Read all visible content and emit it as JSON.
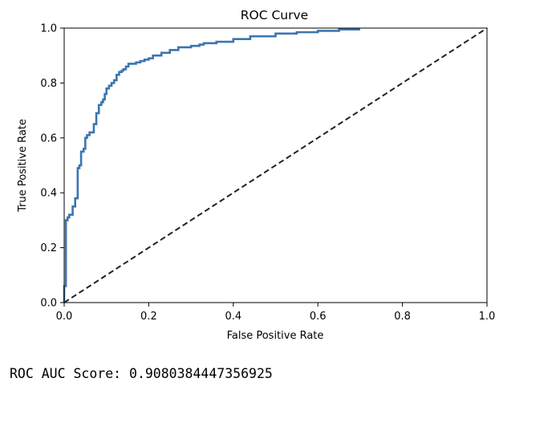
{
  "chart_data": {
    "type": "line",
    "title": "ROC Curve",
    "xlabel": "False Positive Rate",
    "ylabel": "True Positive Rate",
    "xlim": [
      0.0,
      1.0
    ],
    "ylim": [
      0.0,
      1.0
    ],
    "xticks": [
      "0.0",
      "0.2",
      "0.4",
      "0.6",
      "0.8",
      "1.0"
    ],
    "yticks": [
      "0.0",
      "0.2",
      "0.4",
      "0.6",
      "0.8",
      "1.0"
    ],
    "grid": false,
    "legend": "none",
    "series": [
      {
        "color": "#3b75af",
        "style": "solid",
        "step": true,
        "x": [
          0.0,
          0.0,
          0.004,
          0.004,
          0.008,
          0.008,
          0.012,
          0.012,
          0.02,
          0.02,
          0.026,
          0.026,
          0.032,
          0.032,
          0.036,
          0.036,
          0.04,
          0.04,
          0.046,
          0.046,
          0.05,
          0.05,
          0.054,
          0.054,
          0.06,
          0.06,
          0.064,
          0.064,
          0.07,
          0.07,
          0.076,
          0.076,
          0.082,
          0.082,
          0.088,
          0.088,
          0.092,
          0.092,
          0.096,
          0.096,
          0.1,
          0.1,
          0.106,
          0.106,
          0.112,
          0.112,
          0.118,
          0.118,
          0.124,
          0.124,
          0.13,
          0.13,
          0.136,
          0.136,
          0.14,
          0.14,
          0.146,
          0.146,
          0.152,
          0.152,
          0.17,
          0.17,
          0.18,
          0.18,
          0.19,
          0.19,
          0.2,
          0.2,
          0.21,
          0.21,
          0.23,
          0.23,
          0.25,
          0.25,
          0.27,
          0.27,
          0.3,
          0.3,
          0.32,
          0.32,
          0.33,
          0.33,
          0.36,
          0.36,
          0.4,
          0.4,
          0.44,
          0.44,
          0.5,
          0.5,
          0.55,
          0.55,
          0.6,
          0.6,
          0.65,
          0.65,
          0.7
        ],
        "y": [
          0.0,
          0.06,
          0.06,
          0.3,
          0.3,
          0.31,
          0.31,
          0.32,
          0.32,
          0.35,
          0.35,
          0.38,
          0.38,
          0.49,
          0.49,
          0.5,
          0.5,
          0.55,
          0.55,
          0.56,
          0.56,
          0.6,
          0.6,
          0.61,
          0.61,
          0.62,
          0.62,
          0.62,
          0.62,
          0.65,
          0.65,
          0.69,
          0.69,
          0.72,
          0.72,
          0.73,
          0.73,
          0.74,
          0.74,
          0.76,
          0.76,
          0.78,
          0.78,
          0.79,
          0.79,
          0.8,
          0.8,
          0.81,
          0.81,
          0.83,
          0.83,
          0.84,
          0.84,
          0.845,
          0.845,
          0.85,
          0.85,
          0.86,
          0.86,
          0.87,
          0.87,
          0.875,
          0.875,
          0.88,
          0.88,
          0.885,
          0.885,
          0.89,
          0.89,
          0.9,
          0.9,
          0.91,
          0.91,
          0.92,
          0.92,
          0.93,
          0.93,
          0.935,
          0.935,
          0.94,
          0.94,
          0.945,
          0.945,
          0.95,
          0.95,
          0.96,
          0.96,
          0.97,
          0.97,
          0.98,
          0.98,
          0.985,
          0.985,
          0.99,
          0.99,
          0.995,
          0.995
        ]
      },
      {
        "color": "#222222",
        "style": "dashed",
        "x": [
          0.0,
          1.0
        ],
        "y": [
          0.0,
          1.0
        ]
      }
    ]
  },
  "output": {
    "auc_label": "ROC AUC Score: 0.9080384447356925"
  }
}
